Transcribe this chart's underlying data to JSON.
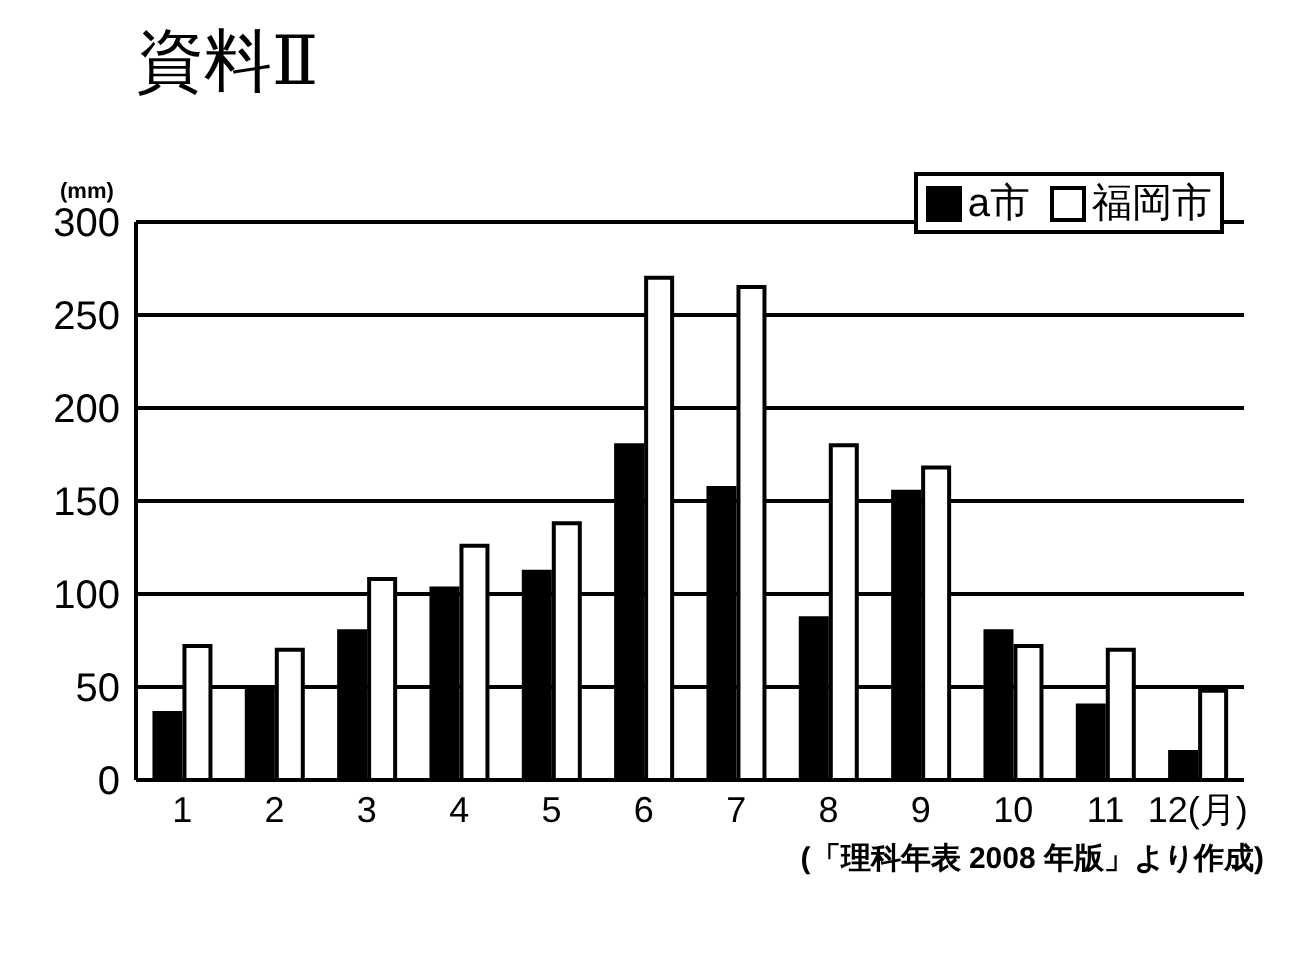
{
  "chart_data": {
    "type": "bar",
    "title": "資料Ⅱ",
    "ylabel": "(mm)",
    "categories": [
      "1",
      "2",
      "3",
      "4",
      "5",
      "6",
      "7",
      "8",
      "9",
      "10",
      "11",
      "12(月)"
    ],
    "series": [
      {
        "name": "a市",
        "color": "#000000",
        "values": [
          36,
          48,
          80,
          103,
          112,
          180,
          157,
          87,
          155,
          80,
          40,
          15
        ]
      },
      {
        "name": "福岡市",
        "color": "#ffffff",
        "values": [
          72,
          70,
          108,
          126,
          138,
          270,
          265,
          180,
          168,
          72,
          70,
          48
        ]
      }
    ],
    "ylim": [
      0,
      300
    ],
    "yticks": [
      0,
      50,
      100,
      150,
      200,
      250,
      300
    ],
    "grid": "y",
    "legend": "top right",
    "annotations": [
      "(「理科年表 2008 年版」より作成)"
    ]
  }
}
